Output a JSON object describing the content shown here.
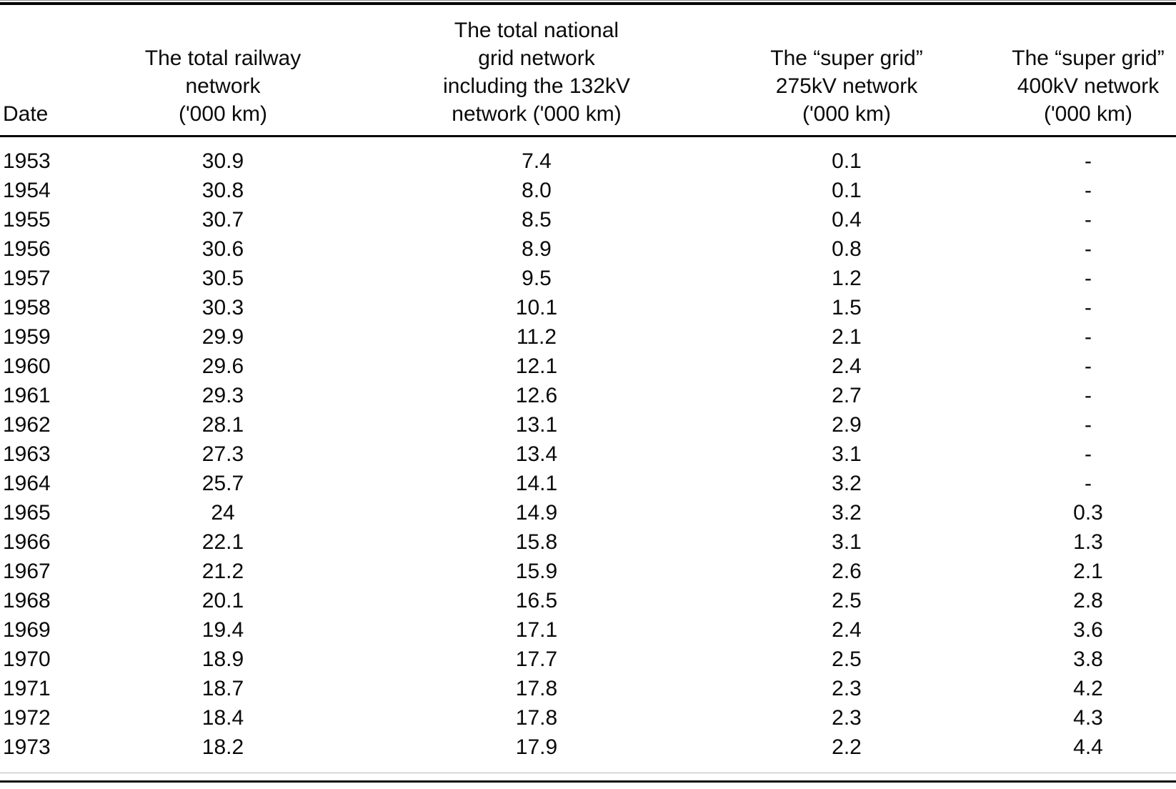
{
  "chart_data": {
    "type": "table",
    "title": "",
    "columns": [
      "Date",
      "The total railway network ('000 km)",
      "The total national grid network including the 132kV network ('000 km)",
      "The “super grid” 275kV network ('000 km)",
      "The “super grid” 400kV network ('000 km)"
    ],
    "rows": [
      [
        "1953",
        "30.9",
        "7.4",
        "0.1",
        "-"
      ],
      [
        "1954",
        "30.8",
        "8.0",
        "0.1",
        "-"
      ],
      [
        "1955",
        "30.7",
        "8.5",
        "0.4",
        "-"
      ],
      [
        "1956",
        "30.6",
        "8.9",
        "0.8",
        "-"
      ],
      [
        "1957",
        "30.5",
        "9.5",
        "1.2",
        "-"
      ],
      [
        "1958",
        "30.3",
        "10.1",
        "1.5",
        "-"
      ],
      [
        "1959",
        "29.9",
        "11.2",
        "2.1",
        "-"
      ],
      [
        "1960",
        "29.6",
        "12.1",
        "2.4",
        "-"
      ],
      [
        "1961",
        "29.3",
        "12.6",
        "2.7",
        "-"
      ],
      [
        "1962",
        "28.1",
        "13.1",
        "2.9",
        "-"
      ],
      [
        "1963",
        "27.3",
        "13.4",
        "3.1",
        "-"
      ],
      [
        "1964",
        "25.7",
        "14.1",
        "3.2",
        "-"
      ],
      [
        "1965",
        "24",
        "14.9",
        "3.2",
        "0.3"
      ],
      [
        "1966",
        "22.1",
        "15.8",
        "3.1",
        "1.3"
      ],
      [
        "1967",
        "21.2",
        "15.9",
        "2.6",
        "2.1"
      ],
      [
        "1968",
        "20.1",
        "16.5",
        "2.5",
        "2.8"
      ],
      [
        "1969",
        "19.4",
        "17.1",
        "2.4",
        "3.6"
      ],
      [
        "1970",
        "18.9",
        "17.7",
        "2.5",
        "3.8"
      ],
      [
        "1971",
        "18.7",
        "17.8",
        "2.3",
        "4.2"
      ],
      [
        "1972",
        "18.4",
        "17.8",
        "2.3",
        "4.3"
      ],
      [
        "1973",
        "18.2",
        "17.9",
        "2.2",
        "4.4"
      ]
    ],
    "missing_value_marker": "-",
    "layout": {
      "grid": "off",
      "header_rule": "thick single black line",
      "outer_rules": "double rule at top, thin + thick rule at bottom"
    }
  },
  "table": {
    "headers": [
      "Date",
      "The total railway\nnetwork\n('000 km)",
      "The total national\ngrid network\nincluding the 132kV\nnetwork ('000 km)",
      "The “super grid”\n275kV network\n('000 km)",
      "The “super grid”\n400kV network\n('000 km)"
    ]
  },
  "colors": {
    "text": "#0a0a0a",
    "background": "#ffffff",
    "rule": "#060606",
    "rule_faint": "#9a9a9a"
  }
}
